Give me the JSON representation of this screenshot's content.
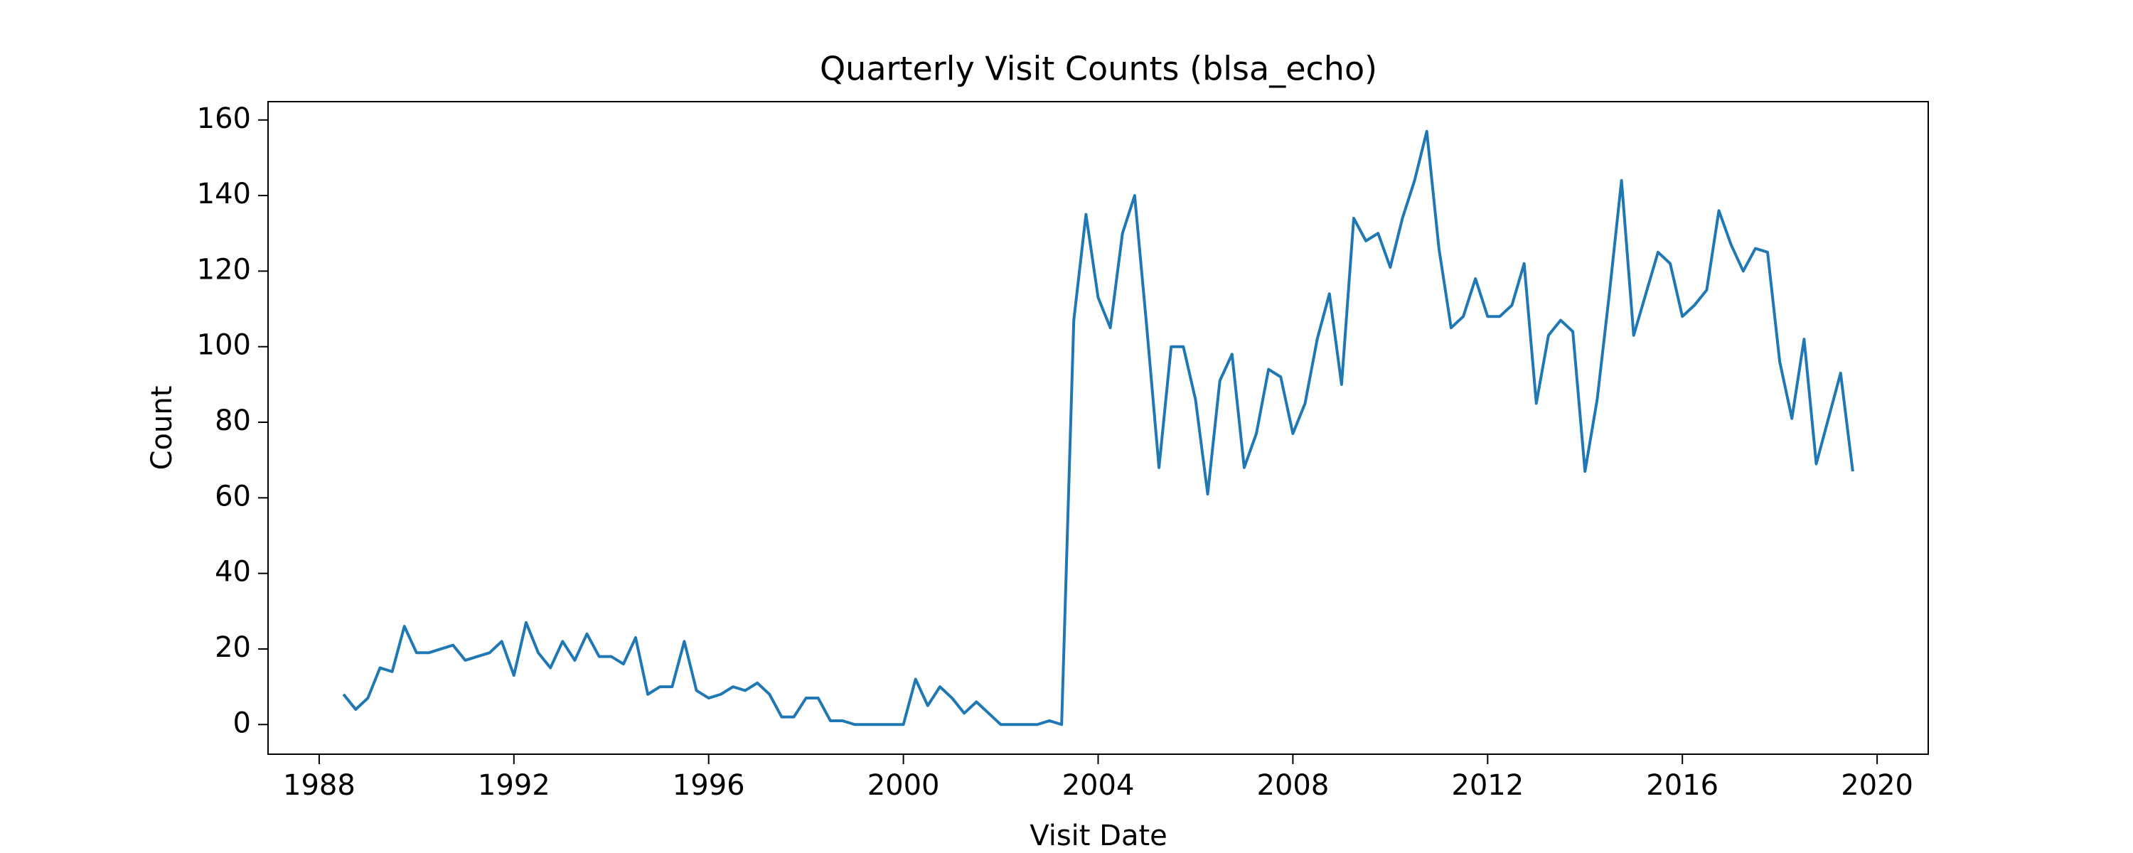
{
  "chart_data": {
    "type": "line",
    "title": "Quarterly Visit Counts (blsa_echo)",
    "x_label": "Visit Date",
    "y_label": "Count",
    "x": [
      1988.5,
      1988.75,
      1989,
      1989.25,
      1989.5,
      1989.75,
      1990,
      1990.25,
      1990.5,
      1990.75,
      1991,
      1991.25,
      1991.5,
      1991.75,
      1992,
      1992.25,
      1992.5,
      1992.75,
      1993,
      1993.25,
      1993.5,
      1993.75,
      1994,
      1994.25,
      1994.5,
      1994.75,
      1995,
      1995.25,
      1995.5,
      1995.75,
      1996,
      1996.25,
      1996.5,
      1996.75,
      1997,
      1997.25,
      1997.5,
      1997.75,
      1998,
      1998.25,
      1998.5,
      1998.75,
      1999,
      1999.25,
      1999.5,
      1999.75,
      2000,
      2000.25,
      2000.5,
      2000.75,
      2001,
      2001.25,
      2001.5,
      2001.75,
      2002,
      2002.25,
      2002.5,
      2002.75,
      2003,
      2003.25,
      2003.5,
      2003.75,
      2004,
      2004.25,
      2004.5,
      2004.75,
      2005,
      2005.25,
      2005.5,
      2005.75,
      2006,
      2006.25,
      2006.5,
      2006.75,
      2007,
      2007.25,
      2007.5,
      2007.75,
      2008,
      2008.25,
      2008.5,
      2008.75,
      2009,
      2009.25,
      2009.5,
      2009.75,
      2010,
      2010.25,
      2010.5,
      2010.75,
      2011,
      2011.25,
      2011.5,
      2011.75,
      2012,
      2012.25,
      2012.5,
      2012.75,
      2013,
      2013.25,
      2013.5,
      2013.75,
      2014,
      2014.25,
      2014.5,
      2014.75,
      2015,
      2015.25,
      2015.5,
      2015.75,
      2016,
      2016.25,
      2016.5,
      2016.75,
      2017,
      2017.25,
      2017.5,
      2017.75,
      2018,
      2018.25,
      2018.5,
      2018.75,
      2019,
      2019.25,
      2019.5
    ],
    "series": [
      {
        "name": "Count",
        "color": "#1f77b4",
        "values": [
          8,
          4,
          7,
          15,
          14,
          26,
          19,
          19,
          20,
          21,
          17,
          18,
          19,
          22,
          13,
          27,
          19,
          15,
          22,
          17,
          24,
          18,
          18,
          16,
          23,
          8,
          10,
          10,
          22,
          9,
          7,
          8,
          10,
          9,
          11,
          8,
          2,
          2,
          7,
          7,
          1,
          1,
          0,
          0,
          0,
          0,
          0,
          12,
          5,
          10,
          7,
          3,
          6,
          3,
          0,
          0,
          0,
          0,
          1,
          0,
          107,
          135,
          113,
          105,
          130,
          140,
          105,
          68,
          100,
          100,
          86,
          61,
          91,
          98,
          68,
          77,
          94,
          92,
          77,
          85,
          102,
          114,
          90,
          134,
          128,
          130,
          121,
          134,
          144,
          157,
          126,
          105,
          108,
          118,
          108,
          108,
          111,
          122,
          85,
          103,
          107,
          104,
          67,
          86,
          114,
          144,
          103,
          114,
          125,
          122,
          108,
          111,
          115,
          136,
          127,
          120,
          126,
          125,
          96,
          81,
          102,
          69,
          81,
          93,
          67
        ]
      }
    ],
    "xlim": [
      1986.95,
      2021.05
    ],
    "ylim": [
      -7.85,
      164.85
    ],
    "xticks": [
      1988,
      1992,
      1996,
      2000,
      2004,
      2008,
      2012,
      2016,
      2020
    ],
    "yticks": [
      0,
      20,
      40,
      60,
      80,
      100,
      120,
      140,
      160
    ],
    "grid": false
  }
}
